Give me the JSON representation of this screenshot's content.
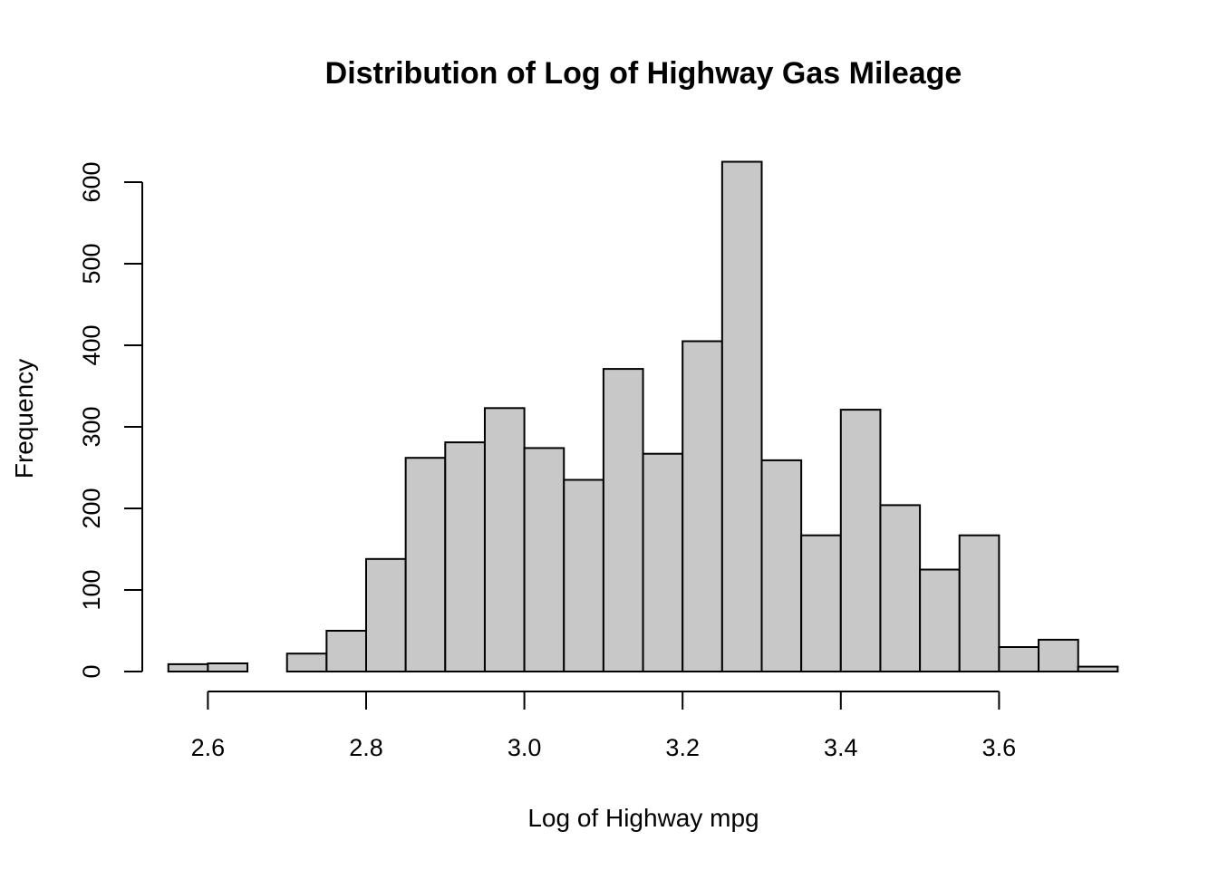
{
  "chart_data": {
    "type": "bar",
    "title": "Distribution of Log of Highway Gas Mileage",
    "xlabel": "Log of Highway mpg",
    "ylabel": "Frequency",
    "bin_width": 0.05,
    "bins": [
      {
        "x0": 2.55,
        "x1": 2.6,
        "count": 9
      },
      {
        "x0": 2.6,
        "x1": 2.65,
        "count": 10
      },
      {
        "x0": 2.65,
        "x1": 2.7,
        "count": 0
      },
      {
        "x0": 2.7,
        "x1": 2.75,
        "count": 22
      },
      {
        "x0": 2.75,
        "x1": 2.8,
        "count": 50
      },
      {
        "x0": 2.8,
        "x1": 2.85,
        "count": 138
      },
      {
        "x0": 2.85,
        "x1": 2.9,
        "count": 262
      },
      {
        "x0": 2.9,
        "x1": 2.95,
        "count": 281
      },
      {
        "x0": 2.95,
        "x1": 3.0,
        "count": 323
      },
      {
        "x0": 3.0,
        "x1": 3.05,
        "count": 274
      },
      {
        "x0": 3.05,
        "x1": 3.1,
        "count": 235
      },
      {
        "x0": 3.1,
        "x1": 3.15,
        "count": 371
      },
      {
        "x0": 3.15,
        "x1": 3.2,
        "count": 267
      },
      {
        "x0": 3.2,
        "x1": 3.25,
        "count": 405
      },
      {
        "x0": 3.25,
        "x1": 3.3,
        "count": 625
      },
      {
        "x0": 3.3,
        "x1": 3.35,
        "count": 259
      },
      {
        "x0": 3.35,
        "x1": 3.4,
        "count": 167
      },
      {
        "x0": 3.4,
        "x1": 3.45,
        "count": 321
      },
      {
        "x0": 3.45,
        "x1": 3.5,
        "count": 204
      },
      {
        "x0": 3.5,
        "x1": 3.55,
        "count": 125
      },
      {
        "x0": 3.55,
        "x1": 3.6,
        "count": 167
      },
      {
        "x0": 3.6,
        "x1": 3.65,
        "count": 30
      },
      {
        "x0": 3.65,
        "x1": 3.7,
        "count": 39
      },
      {
        "x0": 3.7,
        "x1": 3.75,
        "count": 6
      }
    ],
    "x_ticks": [
      "2.6",
      "2.8",
      "3.0",
      "3.2",
      "3.4",
      "3.6"
    ],
    "y_ticks": [
      "0",
      "100",
      "200",
      "300",
      "400",
      "500",
      "600"
    ],
    "xlim": [
      2.55,
      3.75
    ],
    "ylim": [
      0,
      625
    ],
    "grid": false,
    "colors": {
      "bar_fill": "#c8c8c8",
      "bar_stroke": "#000000"
    }
  }
}
